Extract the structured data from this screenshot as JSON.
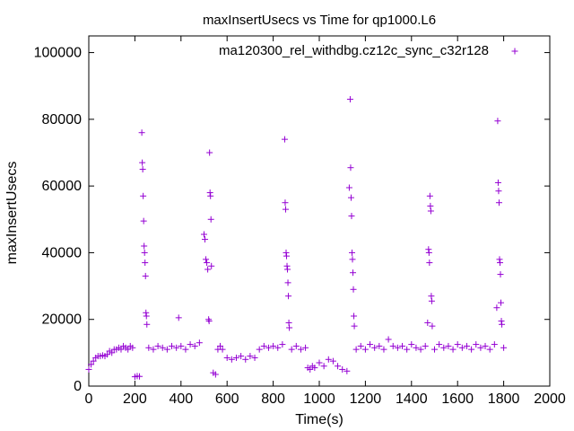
{
  "chart_data": {
    "type": "scatter",
    "title": "maxInsertUsecs vs Time for qp1000.L6",
    "xlabel": "Time(s)",
    "ylabel": "maxInsertUsecs",
    "xlim": [
      0,
      2000
    ],
    "ylim": [
      0,
      105000
    ],
    "x_ticks": [
      0,
      200,
      400,
      600,
      800,
      1000,
      1200,
      1400,
      1600,
      1800,
      2000
    ],
    "y_ticks": [
      0,
      20000,
      40000,
      60000,
      80000,
      100000
    ],
    "x_tick_labels": [
      "0",
      "200",
      "400",
      "600",
      "800",
      "1000",
      "1200",
      "1400",
      "1600",
      "1800",
      "2000"
    ],
    "y_tick_labels": [
      "0",
      "20000",
      "40000",
      "60000",
      "80000",
      "100000"
    ],
    "grid": false,
    "legend_position": "top-right",
    "series": [
      {
        "name": "ma120300_rel_withdbg.cz12c_sync_c32r128",
        "color": "#9400d3",
        "marker": "plus",
        "points": [
          [
            0,
            5000
          ],
          [
            10,
            6500
          ],
          [
            20,
            7500
          ],
          [
            30,
            8500
          ],
          [
            40,
            9000
          ],
          [
            50,
            9000
          ],
          [
            60,
            9200
          ],
          [
            70,
            9000
          ],
          [
            80,
            9500
          ],
          [
            90,
            10500
          ],
          [
            100,
            10000
          ],
          [
            110,
            11000
          ],
          [
            120,
            11000
          ],
          [
            130,
            11500
          ],
          [
            140,
            11000
          ],
          [
            150,
            12000
          ],
          [
            160,
            11500
          ],
          [
            170,
            11000
          ],
          [
            180,
            12000
          ],
          [
            190,
            11500
          ],
          [
            200,
            2800
          ],
          [
            210,
            3000
          ],
          [
            220,
            2900
          ],
          [
            230,
            76000
          ],
          [
            232,
            67000
          ],
          [
            234,
            65000
          ],
          [
            236,
            57000
          ],
          [
            238,
            49500
          ],
          [
            240,
            42000
          ],
          [
            242,
            40000
          ],
          [
            244,
            37000
          ],
          [
            246,
            33000
          ],
          [
            248,
            22000
          ],
          [
            250,
            21000
          ],
          [
            252,
            18500
          ],
          [
            260,
            11500
          ],
          [
            280,
            11000
          ],
          [
            300,
            12000
          ],
          [
            320,
            11500
          ],
          [
            340,
            11000
          ],
          [
            360,
            12000
          ],
          [
            380,
            11500
          ],
          [
            390,
            20500
          ],
          [
            400,
            12000
          ],
          [
            420,
            11000
          ],
          [
            440,
            12500
          ],
          [
            460,
            12000
          ],
          [
            480,
            13000
          ],
          [
            500,
            45500
          ],
          [
            504,
            44000
          ],
          [
            508,
            38000
          ],
          [
            512,
            37000
          ],
          [
            516,
            35000
          ],
          [
            520,
            20000
          ],
          [
            522,
            19500
          ],
          [
            524,
            70000
          ],
          [
            526,
            58000
          ],
          [
            528,
            57000
          ],
          [
            530,
            50000
          ],
          [
            532,
            36000
          ],
          [
            540,
            4000
          ],
          [
            550,
            3500
          ],
          [
            560,
            11000
          ],
          [
            570,
            12000
          ],
          [
            580,
            11000
          ],
          [
            600,
            8500
          ],
          [
            620,
            8000
          ],
          [
            640,
            8500
          ],
          [
            660,
            9000
          ],
          [
            680,
            8000
          ],
          [
            700,
            9000
          ],
          [
            720,
            8500
          ],
          [
            740,
            11000
          ],
          [
            760,
            12000
          ],
          [
            780,
            11500
          ],
          [
            800,
            12000
          ],
          [
            820,
            11500
          ],
          [
            840,
            12500
          ],
          [
            850,
            74000
          ],
          [
            852,
            55000
          ],
          [
            854,
            53000
          ],
          [
            856,
            40000
          ],
          [
            858,
            39000
          ],
          [
            860,
            36000
          ],
          [
            862,
            35000
          ],
          [
            864,
            31000
          ],
          [
            866,
            27000
          ],
          [
            868,
            19000
          ],
          [
            870,
            17500
          ],
          [
            880,
            11000
          ],
          [
            900,
            12000
          ],
          [
            920,
            11000
          ],
          [
            940,
            11500
          ],
          [
            950,
            5500
          ],
          [
            960,
            5000
          ],
          [
            970,
            6000
          ],
          [
            980,
            5500
          ],
          [
            1000,
            7000
          ],
          [
            1020,
            6000
          ],
          [
            1040,
            8000
          ],
          [
            1060,
            7500
          ],
          [
            1080,
            6000
          ],
          [
            1100,
            5000
          ],
          [
            1120,
            4500
          ],
          [
            1130,
            59500
          ],
          [
            1134,
            86000
          ],
          [
            1136,
            65500
          ],
          [
            1138,
            56500
          ],
          [
            1140,
            51000
          ],
          [
            1142,
            40000
          ],
          [
            1144,
            38000
          ],
          [
            1146,
            34000
          ],
          [
            1148,
            29000
          ],
          [
            1150,
            21000
          ],
          [
            1152,
            18000
          ],
          [
            1160,
            11000
          ],
          [
            1180,
            12000
          ],
          [
            1200,
            11000
          ],
          [
            1220,
            12500
          ],
          [
            1240,
            11500
          ],
          [
            1260,
            12000
          ],
          [
            1280,
            11000
          ],
          [
            1300,
            14000
          ],
          [
            1320,
            12000
          ],
          [
            1340,
            11500
          ],
          [
            1360,
            12000
          ],
          [
            1380,
            11000
          ],
          [
            1400,
            12500
          ],
          [
            1420,
            11500
          ],
          [
            1440,
            11000
          ],
          [
            1460,
            12000
          ],
          [
            1470,
            19000
          ],
          [
            1474,
            41000
          ],
          [
            1476,
            40000
          ],
          [
            1478,
            37000
          ],
          [
            1480,
            57000
          ],
          [
            1482,
            54000
          ],
          [
            1484,
            52500
          ],
          [
            1486,
            27000
          ],
          [
            1488,
            25500
          ],
          [
            1490,
            18000
          ],
          [
            1500,
            11000
          ],
          [
            1520,
            12500
          ],
          [
            1540,
            11500
          ],
          [
            1560,
            12000
          ],
          [
            1580,
            11000
          ],
          [
            1600,
            12500
          ],
          [
            1620,
            11500
          ],
          [
            1640,
            12000
          ],
          [
            1660,
            11000
          ],
          [
            1680,
            12500
          ],
          [
            1700,
            11500
          ],
          [
            1720,
            12000
          ],
          [
            1740,
            11000
          ],
          [
            1760,
            12500
          ],
          [
            1770,
            23500
          ],
          [
            1774,
            79500
          ],
          [
            1776,
            61000
          ],
          [
            1778,
            58500
          ],
          [
            1780,
            55000
          ],
          [
            1782,
            38000
          ],
          [
            1784,
            37000
          ],
          [
            1786,
            33500
          ],
          [
            1788,
            25000
          ],
          [
            1790,
            19500
          ],
          [
            1792,
            18500
          ],
          [
            1800,
            11500
          ]
        ]
      }
    ]
  }
}
